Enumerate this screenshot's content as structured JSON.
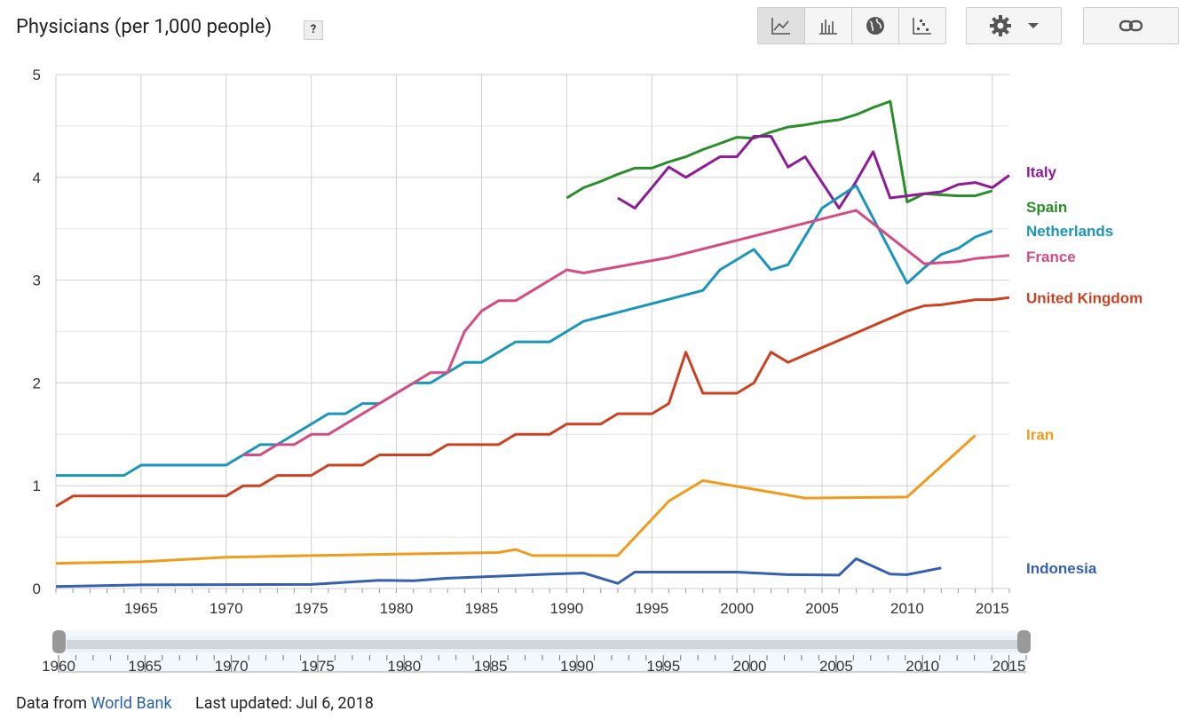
{
  "header": {
    "title": "Physicians (per 1,000 people)",
    "help": "?"
  },
  "toolbar": {
    "views": [
      "line-chart-icon",
      "bar-chart-icon",
      "map-icon",
      "scatter-icon"
    ]
  },
  "footer": {
    "data_from": "Data from",
    "source": "World Bank",
    "updated": "Last updated: Jul 6, 2018"
  },
  "chart_data": {
    "type": "line",
    "title": "Physicians (per 1,000 people)",
    "xlim": [
      1960,
      2016
    ],
    "ylim": [
      0,
      5
    ],
    "x_ticks": [
      1965,
      1970,
      1975,
      1980,
      1985,
      1990,
      1995,
      2000,
      2005,
      2010,
      2015
    ],
    "y_ticks": [
      0,
      1,
      2,
      3,
      4,
      5
    ],
    "slider_ticks": [
      1960,
      1965,
      1970,
      1975,
      1980,
      1985,
      1990,
      1995,
      2000,
      2005,
      2010,
      2015
    ],
    "series": [
      {
        "name": "Spain",
        "color": "#2a8d2a",
        "label_y": 3.87,
        "points": [
          [
            1990,
            3.8
          ],
          [
            1991,
            3.9
          ],
          [
            1992,
            3.96
          ],
          [
            1993,
            4.03
          ],
          [
            1994,
            4.09
          ],
          [
            1995,
            4.09
          ],
          [
            1996,
            4.15
          ],
          [
            1997,
            4.2
          ],
          [
            1998,
            4.27
          ],
          [
            1999,
            4.33
          ],
          [
            2000,
            4.39
          ],
          [
            2001,
            4.38
          ],
          [
            2002,
            4.44
          ],
          [
            2003,
            4.49
          ],
          [
            2004,
            4.51
          ],
          [
            2005,
            4.54
          ],
          [
            2006,
            4.56
          ],
          [
            2007,
            4.61
          ],
          [
            2008,
            4.68
          ],
          [
            2009,
            4.74
          ],
          [
            2010,
            3.76
          ],
          [
            2011,
            3.84
          ],
          [
            2012,
            3.83
          ],
          [
            2013,
            3.82
          ],
          [
            2014,
            3.82
          ],
          [
            2015,
            3.87
          ]
        ]
      },
      {
        "name": "Italy",
        "color": "#8e1b96",
        "label_y": 4.03,
        "points": [
          [
            1993,
            3.8
          ],
          [
            1994,
            3.7
          ],
          [
            1995,
            3.9
          ],
          [
            1996,
            4.1
          ],
          [
            1997,
            4.0
          ],
          [
            1998,
            4.1
          ],
          [
            1999,
            4.2
          ],
          [
            2000,
            4.2
          ],
          [
            2001,
            4.4
          ],
          [
            2002,
            4.4
          ],
          [
            2003,
            4.1
          ],
          [
            2004,
            4.2
          ],
          [
            2005,
            3.95
          ],
          [
            2006,
            3.7
          ],
          [
            2007,
            3.96
          ],
          [
            2008,
            4.25
          ],
          [
            2009,
            3.8
          ],
          [
            2010,
            3.82
          ],
          [
            2011,
            3.84
          ],
          [
            2012,
            3.86
          ],
          [
            2013,
            3.93
          ],
          [
            2014,
            3.95
          ],
          [
            2015,
            3.9
          ],
          [
            2016,
            4.02
          ]
        ]
      },
      {
        "name": "Netherlands",
        "color": "#1b95ba",
        "label_y": 3.48,
        "points": [
          [
            1960,
            1.1
          ],
          [
            1964,
            1.1
          ],
          [
            1965,
            1.2
          ],
          [
            1970,
            1.2
          ],
          [
            1972,
            1.4
          ],
          [
            1973,
            1.4
          ],
          [
            1976,
            1.7
          ],
          [
            1977,
            1.7
          ],
          [
            1978,
            1.8
          ],
          [
            1979,
            1.8
          ],
          [
            1981,
            2.0
          ],
          [
            1982,
            2.0
          ],
          [
            1984,
            2.2
          ],
          [
            1985,
            2.2
          ],
          [
            1987,
            2.4
          ],
          [
            1989,
            2.4
          ],
          [
            1991,
            2.6
          ],
          [
            1998,
            2.9
          ],
          [
            1999,
            3.1
          ],
          [
            2001,
            3.3
          ],
          [
            2002,
            3.1
          ],
          [
            2003,
            3.15
          ],
          [
            2005,
            3.7
          ],
          [
            2007,
            3.92
          ],
          [
            2010,
            2.97
          ],
          [
            2011,
            3.12
          ],
          [
            2012,
            3.25
          ],
          [
            2013,
            3.31
          ],
          [
            2014,
            3.42
          ],
          [
            2015,
            3.48
          ]
        ]
      },
      {
        "name": "France",
        "color": "#d54c82",
        "label_y": 3.23,
        "points": [
          [
            1971,
            1.3
          ],
          [
            1972,
            1.3
          ],
          [
            1973,
            1.4
          ],
          [
            1974,
            1.4
          ],
          [
            1975,
            1.5
          ],
          [
            1976,
            1.5
          ],
          [
            1981,
            2.0
          ],
          [
            1982,
            2.1
          ],
          [
            1983,
            2.1
          ],
          [
            1984,
            2.5
          ],
          [
            1985,
            2.7
          ],
          [
            1986,
            2.8
          ],
          [
            1987,
            2.8
          ],
          [
            1990,
            3.1
          ],
          [
            1991,
            3.07
          ],
          [
            1996,
            3.22
          ],
          [
            2007,
            3.68
          ],
          [
            2011,
            3.16
          ],
          [
            2013,
            3.18
          ],
          [
            2014,
            3.21
          ],
          [
            2016,
            3.24
          ]
        ]
      },
      {
        "name": "United Kingdom",
        "color": "#cc4122",
        "label_y": 2.83,
        "points": [
          [
            1960,
            0.8
          ],
          [
            1961,
            0.9
          ],
          [
            1970,
            0.9
          ],
          [
            1971,
            1.0
          ],
          [
            1972,
            1.0
          ],
          [
            1973,
            1.1
          ],
          [
            1975,
            1.1
          ],
          [
            1976,
            1.2
          ],
          [
            1978,
            1.2
          ],
          [
            1979,
            1.3
          ],
          [
            1982,
            1.3
          ],
          [
            1983,
            1.4
          ],
          [
            1986,
            1.4
          ],
          [
            1987,
            1.5
          ],
          [
            1989,
            1.5
          ],
          [
            1990,
            1.6
          ],
          [
            1992,
            1.6
          ],
          [
            1993,
            1.7
          ],
          [
            1995,
            1.7
          ],
          [
            1996,
            1.8
          ],
          [
            1997,
            2.3
          ],
          [
            1998,
            1.9
          ],
          [
            2000,
            1.9
          ],
          [
            2001,
            2.0
          ],
          [
            2002,
            2.3
          ],
          [
            2003,
            2.2
          ],
          [
            2010,
            2.7
          ],
          [
            2011,
            2.75
          ],
          [
            2012,
            2.76
          ],
          [
            2014,
            2.81
          ],
          [
            2015,
            2.81
          ],
          [
            2016,
            2.83
          ]
        ]
      },
      {
        "name": "Iran",
        "color": "#f09b1c",
        "label_y": 1.5,
        "points": [
          [
            1960,
            0.245
          ],
          [
            1965,
            0.26
          ],
          [
            1970,
            0.305
          ],
          [
            1975,
            0.32
          ],
          [
            1980,
            0.335
          ],
          [
            1986,
            0.35
          ],
          [
            1987,
            0.38
          ],
          [
            1988,
            0.32
          ],
          [
            1993,
            0.32
          ],
          [
            1996,
            0.85
          ],
          [
            1998,
            1.05
          ],
          [
            2004,
            0.88
          ],
          [
            2010,
            0.89
          ],
          [
            2014,
            1.49
          ]
        ]
      },
      {
        "name": "Indonesia",
        "color": "#3760b0",
        "label_y": 0.2,
        "points": [
          [
            1960,
            0.02
          ],
          [
            1965,
            0.035
          ],
          [
            1975,
            0.04
          ],
          [
            1979,
            0.08
          ],
          [
            1981,
            0.075
          ],
          [
            1983,
            0.1
          ],
          [
            1986,
            0.12
          ],
          [
            1989,
            0.14
          ],
          [
            1991,
            0.15
          ],
          [
            1993,
            0.05
          ],
          [
            1994,
            0.16
          ],
          [
            2000,
            0.16
          ],
          [
            2003,
            0.135
          ],
          [
            2006,
            0.13
          ],
          [
            2007,
            0.29
          ],
          [
            2009,
            0.14
          ],
          [
            2010,
            0.135
          ],
          [
            2012,
            0.2
          ]
        ]
      }
    ]
  }
}
